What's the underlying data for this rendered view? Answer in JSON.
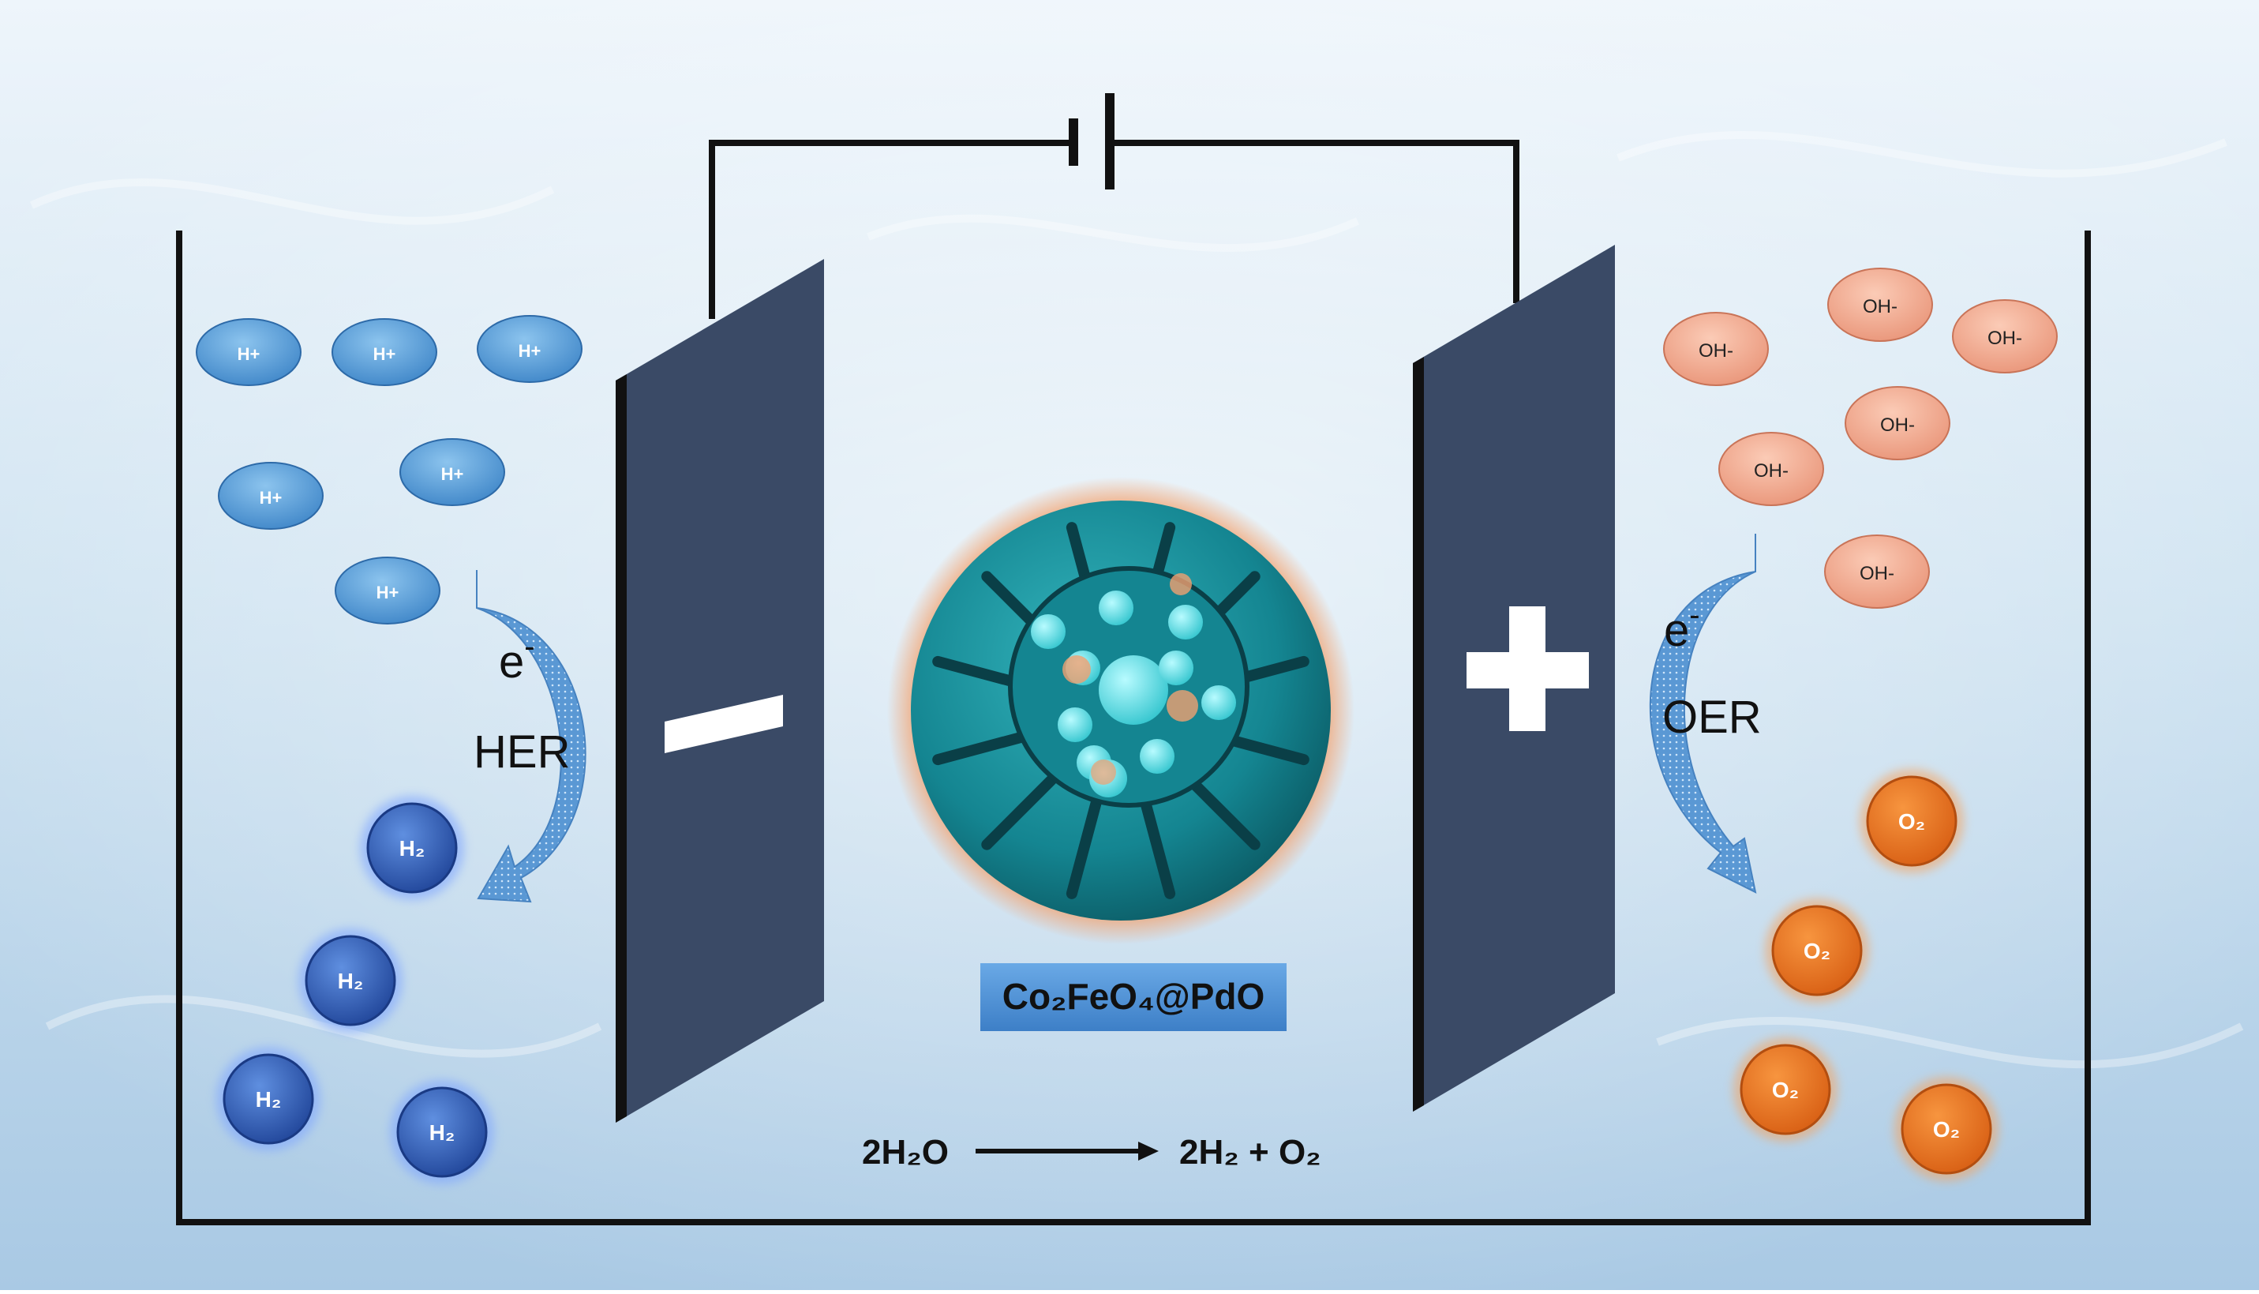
{
  "diagram": {
    "labels": {
      "cathode_electrons": "e",
      "cathode_electrons_sup": "-",
      "cathode_reaction": "HER",
      "anode_electrons": "e",
      "anode_electrons_sup": "-",
      "anode_reaction": "OER"
    },
    "catalyst_label": "Co₂FeO₄@PdO",
    "equation": {
      "reactants": "2H₂O",
      "products": "2H₂ + O₂"
    },
    "species": {
      "proton": "H+",
      "hydrogen": "H₂",
      "hydroxide": "OH-",
      "oxygen": "O₂"
    },
    "counts": {
      "proton": 6,
      "hydrogen": 4,
      "hydroxide": 6,
      "oxygen": 4
    },
    "colors": {
      "background": "#cfe3f1",
      "electrode": "#3a4a66",
      "proton": "#4d95d6",
      "hydrogen": "#2e58b4",
      "hydroxide": "#f0a488",
      "oxygen": "#ea7526",
      "catalyst": "#168c96",
      "label_box": "#4d90d6",
      "wire": "#111111"
    }
  }
}
